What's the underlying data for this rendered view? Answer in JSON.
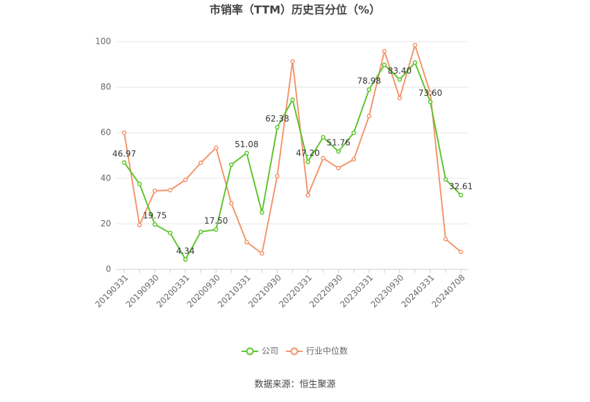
{
  "chart_data": {
    "type": "line",
    "title": "市销率（TTM）历史百分位（%）",
    "source": "数据来源：恒生聚源",
    "categories": [
      "20190331",
      null,
      "20190930",
      null,
      "20200331",
      null,
      "20200930",
      null,
      "20210331",
      null,
      "20210930",
      null,
      "20220331",
      null,
      "20220930",
      null,
      "20230331",
      null,
      "20230930",
      null,
      "20240331",
      null,
      "20240708"
    ],
    "series": [
      {
        "name": "公司",
        "color": "#5cc52b",
        "values": [
          46.97,
          37.5,
          19.75,
          16,
          4.34,
          16.5,
          17.5,
          46,
          51.08,
          25,
          62.38,
          74.5,
          47.2,
          58,
          51.76,
          60,
          78.98,
          89.8,
          83.4,
          90.8,
          73.6,
          39.5,
          32.61
        ],
        "value_labels": [
          "46.97",
          null,
          "19.75",
          null,
          "4.34",
          null,
          "17.50",
          null,
          "51.08",
          null,
          "62.38",
          null,
          "47.20",
          null,
          "51.76",
          null,
          "78.98",
          null,
          "83.40",
          null,
          "73.60",
          null,
          "32.61"
        ]
      },
      {
        "name": "行业中位数",
        "color": "#f4946a",
        "values": [
          60,
          19.5,
          34.5,
          34.8,
          39.3,
          46.8,
          53.4,
          29,
          12,
          7,
          41,
          91.3,
          32.6,
          48.8,
          44.5,
          48.3,
          67.3,
          95.8,
          75.2,
          98.5,
          77.5,
          13.3,
          7.7
        ]
      }
    ],
    "ylim": [
      0,
      100
    ],
    "yticks": [
      0,
      20,
      40,
      60,
      80,
      100
    ],
    "grid": true
  }
}
